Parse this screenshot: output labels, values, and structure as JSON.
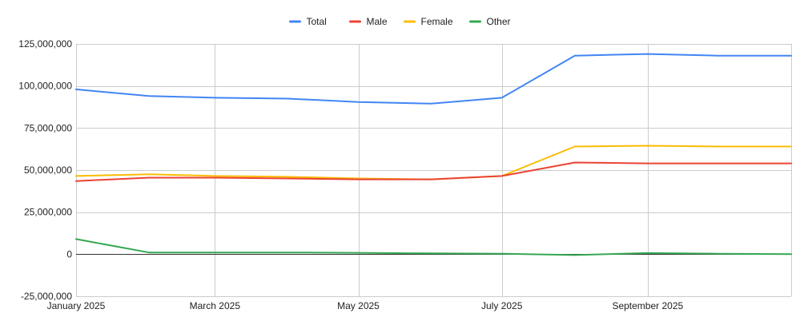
{
  "chart_data": {
    "type": "line",
    "title": "",
    "xlabel": "",
    "ylabel": "",
    "x": [
      "2025-01-01",
      "2025-02-01",
      "2025-03-01",
      "2025-04-01",
      "2025-05-01",
      "2025-06-01",
      "2025-07-01",
      "2025-08-01",
      "2025-09-01",
      "2025-10-01",
      "2025-11-01"
    ],
    "x_tick_labels": [
      {
        "x": "2025-01-01",
        "label": "January 2025"
      },
      {
        "x": "2025-03-01",
        "label": "March 2025"
      },
      {
        "x": "2025-05-01",
        "label": "May 2025"
      },
      {
        "x": "2025-07-01",
        "label": "July 2025"
      },
      {
        "x": "2025-09-01",
        "label": "September 2025"
      }
    ],
    "x_range": [
      "2025-01-01",
      "2025-11-01"
    ],
    "ylim": [
      -25000000,
      125000000
    ],
    "y_ticks": [
      -25000000,
      0,
      25000000,
      50000000,
      75000000,
      100000000,
      125000000
    ],
    "y_tick_labels": [
      "-25,000,000",
      "0",
      "25,000,000",
      "50,000,000",
      "75,000,000",
      "100,000,000",
      "125,000,000"
    ],
    "grid": true,
    "legend_position": "top-center",
    "series": [
      {
        "name": "Total",
        "color": "#4285f4",
        "values": [
          98000000,
          94000000,
          93000000,
          92500000,
          90500000,
          89500000,
          93000000,
          118000000,
          119000000,
          118000000,
          118000000
        ]
      },
      {
        "name": "Male",
        "color": "#ea4335",
        "values": [
          43500000,
          45500000,
          45500000,
          45000000,
          44500000,
          44500000,
          46500000,
          54500000,
          54000000,
          54000000,
          54000000
        ]
      },
      {
        "name": "Female",
        "color": "#fbbc04",
        "values": [
          46500000,
          47500000,
          46500000,
          46000000,
          45000000,
          44500000,
          46500000,
          64000000,
          64500000,
          64000000,
          64000000
        ]
      },
      {
        "name": "Other",
        "color": "#34a853",
        "values": [
          9000000,
          1000000,
          1000000,
          1000000,
          800000,
          500000,
          300000,
          -500000,
          700000,
          300000,
          0
        ]
      }
    ]
  }
}
